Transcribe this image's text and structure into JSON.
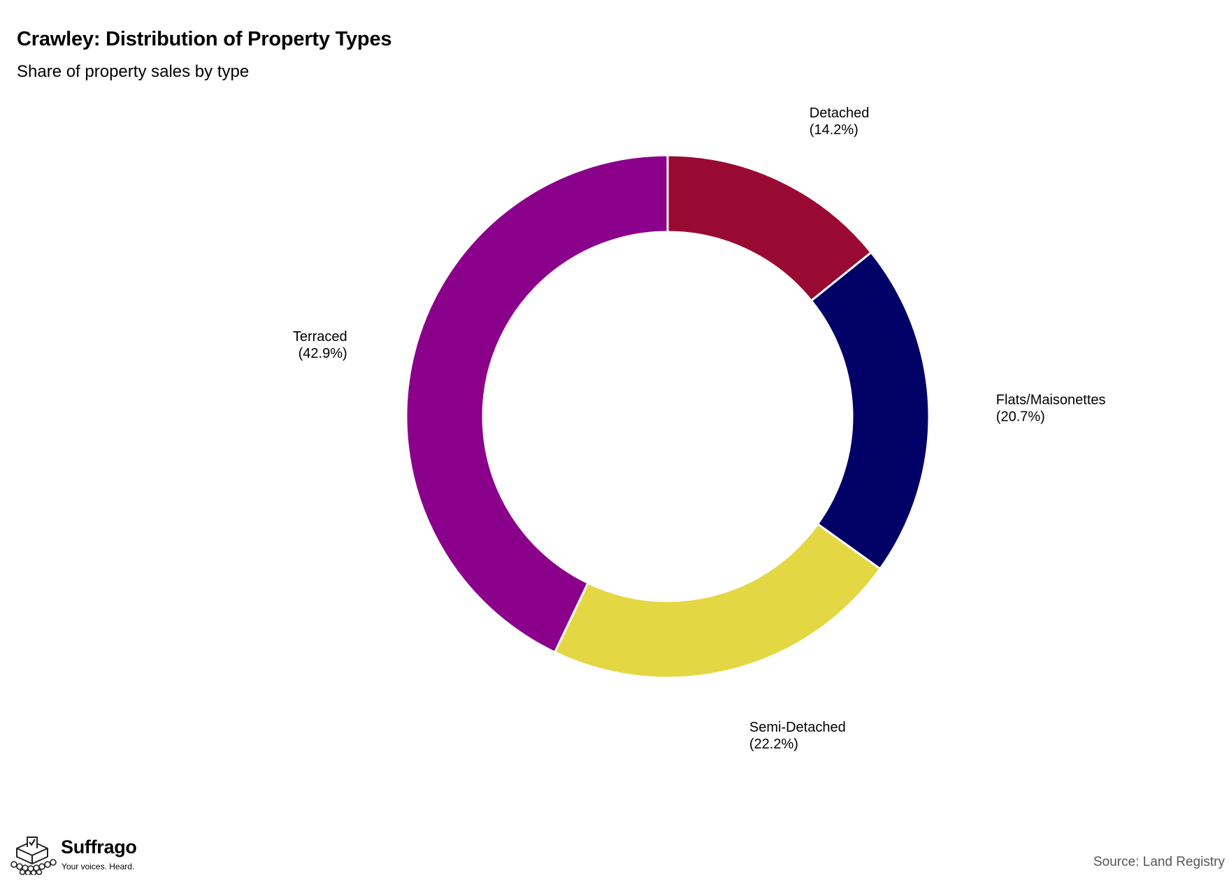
{
  "header": {
    "title": "Crawley: Distribution of Property Types",
    "subtitle": "Share of property sales by type"
  },
  "chart_data": {
    "type": "pie",
    "variant": "donut",
    "title": "Crawley: Distribution of Property Types",
    "subtitle": "Share of property sales by type",
    "start_angle_deg": 0,
    "direction": "clockwise",
    "slices": [
      {
        "label": "Detached",
        "value": 14.2,
        "value_label": "(14.2%)",
        "color": "#990a32"
      },
      {
        "label": "Flats/Maisonettes",
        "value": 20.7,
        "value_label": "(20.7%)",
        "color": "#000066"
      },
      {
        "label": "Semi-Detached",
        "value": 22.2,
        "value_label": "(22.2%)",
        "color": "#e3d843"
      },
      {
        "label": "Terraced",
        "value": 42.9,
        "value_label": "(42.9%)",
        "color": "#8b008b"
      }
    ]
  },
  "footer": {
    "brand": "Suffrago",
    "tagline": "Your voices. Heard.",
    "source": "Source: Land Registry"
  },
  "icons": {
    "logo": "ballot-box-logo-icon"
  }
}
